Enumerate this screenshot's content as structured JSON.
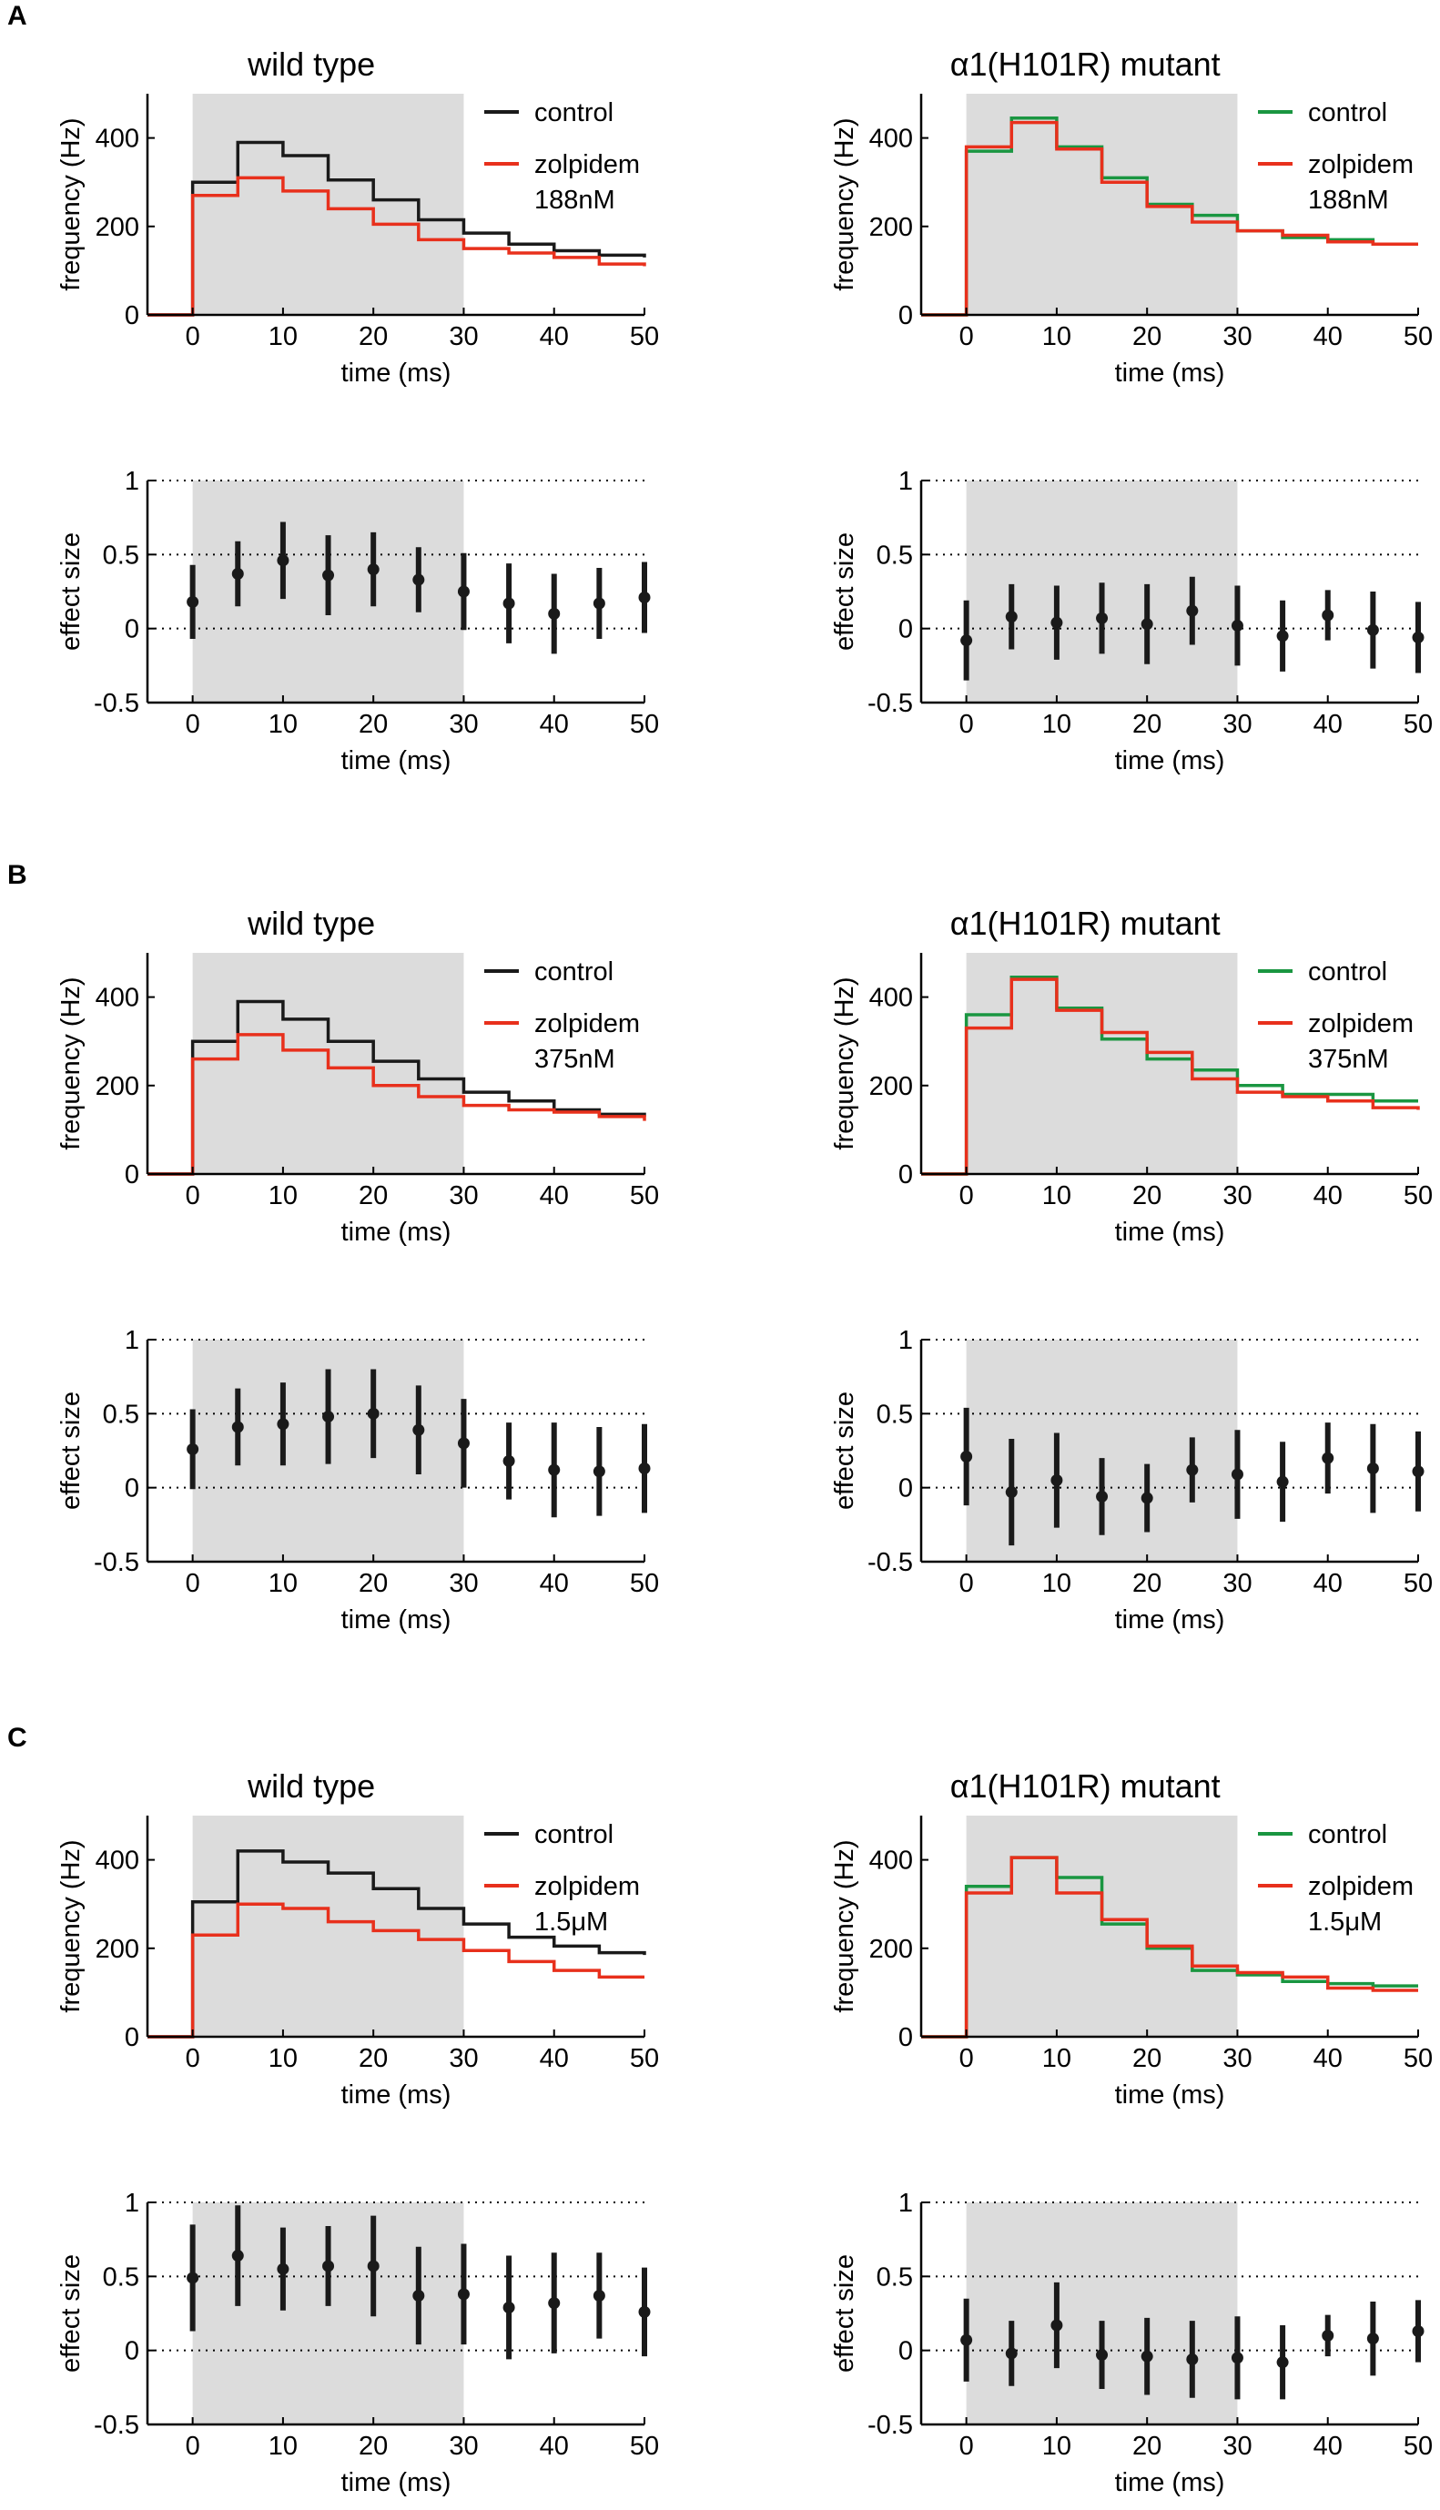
{
  "colors": {
    "control_wt": "#1a1a1a",
    "control_mut": "#1a9641",
    "zolpidem": "#e8301c",
    "shade": "#dcdcdc",
    "axis": "#000000"
  },
  "chart_data": [
    {
      "panel": "A",
      "type": "line",
      "title": "wild type",
      "xlabel": "time (ms)",
      "ylabel": "frequency (Hz)",
      "xlim": [
        -5,
        50
      ],
      "ylim": [
        0,
        500
      ],
      "xticks": [
        "0",
        "10",
        "20",
        "30",
        "40",
        "50"
      ],
      "yticks": [
        "0",
        "200",
        "400"
      ],
      "stimulus_window": [
        0,
        30
      ],
      "legend": {
        "items": [
          "control",
          "zolpidem"
        ],
        "dose": "188nM",
        "position": "top-right"
      },
      "series": [
        {
          "name": "control",
          "color": "control_wt",
          "x": [
            -5,
            0,
            5,
            10,
            15,
            20,
            25,
            30,
            35,
            40,
            45,
            50
          ],
          "values": [
            0,
            300,
            390,
            360,
            305,
            260,
            215,
            185,
            160,
            145,
            135,
            130
          ]
        },
        {
          "name": "zolpidem",
          "color": "zolpidem",
          "x": [
            -5,
            0,
            5,
            10,
            15,
            20,
            25,
            30,
            35,
            40,
            45,
            50
          ],
          "values": [
            0,
            270,
            310,
            280,
            240,
            205,
            170,
            150,
            140,
            130,
            115,
            110
          ]
        }
      ]
    },
    {
      "panel": "",
      "type": "errorbar",
      "title": "",
      "xlabel": "time (ms)",
      "ylabel": "effect size",
      "xlim": [
        -5,
        50
      ],
      "ylim": [
        -0.5,
        1
      ],
      "xticks": [
        "0",
        "10",
        "20",
        "30",
        "40",
        "50"
      ],
      "yticks": [
        "-0.5",
        "0",
        "0.5",
        "1"
      ],
      "stimulus_window": [
        0,
        30
      ],
      "gridlines": [
        0,
        0.5,
        1
      ],
      "x": [
        0,
        5,
        10,
        15,
        20,
        25,
        30,
        35,
        40,
        45,
        50
      ],
      "values": [
        0.18,
        0.37,
        0.46,
        0.36,
        0.4,
        0.33,
        0.25,
        0.17,
        0.1,
        0.17,
        0.21
      ],
      "err": [
        0.25,
        0.22,
        0.26,
        0.27,
        0.25,
        0.22,
        0.26,
        0.27,
        0.27,
        0.24,
        0.24
      ]
    },
    {
      "panel": "",
      "type": "line",
      "title": "α1(H101R) mutant",
      "xlabel": "time (ms)",
      "ylabel": "frequency (Hz)",
      "xlim": [
        -5,
        50
      ],
      "ylim": [
        0,
        500
      ],
      "xticks": [
        "0",
        "10",
        "20",
        "30",
        "40",
        "50"
      ],
      "yticks": [
        "0",
        "200",
        "400"
      ],
      "stimulus_window": [
        0,
        30
      ],
      "legend": {
        "items": [
          "control",
          "zolpidem"
        ],
        "dose": "188nM",
        "position": "top-right"
      },
      "series": [
        {
          "name": "control",
          "color": "control_mut",
          "x": [
            -5,
            0,
            5,
            10,
            15,
            20,
            25,
            30,
            35,
            40,
            45,
            50
          ],
          "values": [
            0,
            370,
            445,
            380,
            310,
            250,
            225,
            190,
            175,
            170,
            160,
            160
          ]
        },
        {
          "name": "zolpidem",
          "color": "zolpidem",
          "x": [
            -5,
            0,
            5,
            10,
            15,
            20,
            25,
            30,
            35,
            40,
            45,
            50
          ],
          "values": [
            0,
            380,
            435,
            375,
            300,
            245,
            210,
            190,
            180,
            165,
            160,
            160
          ]
        }
      ]
    },
    {
      "panel": "",
      "type": "errorbar",
      "title": "",
      "xlabel": "time (ms)",
      "ylabel": "effect size",
      "xlim": [
        -5,
        50
      ],
      "ylim": [
        -0.5,
        1
      ],
      "xticks": [
        "0",
        "10",
        "20",
        "30",
        "40",
        "50"
      ],
      "yticks": [
        "-0.5",
        "0",
        "0.5",
        "1"
      ],
      "stimulus_window": [
        0,
        30
      ],
      "gridlines": [
        0,
        0.5,
        1
      ],
      "x": [
        0,
        5,
        10,
        15,
        20,
        25,
        30,
        35,
        40,
        45,
        50
      ],
      "values": [
        -0.08,
        0.08,
        0.04,
        0.07,
        0.03,
        0.12,
        0.02,
        -0.05,
        0.09,
        -0.01,
        -0.06
      ],
      "err": [
        0.27,
        0.22,
        0.25,
        0.24,
        0.27,
        0.23,
        0.27,
        0.24,
        0.17,
        0.26,
        0.24
      ]
    },
    {
      "panel": "B",
      "type": "line",
      "title": "wild type",
      "xlabel": "time (ms)",
      "ylabel": "frequency (Hz)",
      "xlim": [
        -5,
        50
      ],
      "ylim": [
        0,
        500
      ],
      "xticks": [
        "0",
        "10",
        "20",
        "30",
        "40",
        "50"
      ],
      "yticks": [
        "0",
        "200",
        "400"
      ],
      "stimulus_window": [
        0,
        30
      ],
      "legend": {
        "items": [
          "control",
          "zolpidem"
        ],
        "dose": "375nM",
        "position": "top-right"
      },
      "series": [
        {
          "name": "control",
          "color": "control_wt",
          "x": [
            -5,
            0,
            5,
            10,
            15,
            20,
            25,
            30,
            35,
            40,
            45,
            50
          ],
          "values": [
            0,
            300,
            390,
            350,
            300,
            255,
            215,
            185,
            165,
            145,
            135,
            130
          ]
        },
        {
          "name": "zolpidem",
          "color": "zolpidem",
          "x": [
            -5,
            0,
            5,
            10,
            15,
            20,
            25,
            30,
            35,
            40,
            45,
            50
          ],
          "values": [
            0,
            260,
            315,
            280,
            240,
            200,
            175,
            155,
            145,
            140,
            130,
            120
          ]
        }
      ]
    },
    {
      "panel": "",
      "type": "errorbar",
      "title": "",
      "xlabel": "time (ms)",
      "ylabel": "effect size",
      "xlim": [
        -5,
        50
      ],
      "ylim": [
        -0.5,
        1
      ],
      "xticks": [
        "0",
        "10",
        "20",
        "30",
        "40",
        "50"
      ],
      "yticks": [
        "-0.5",
        "0",
        "0.5",
        "1"
      ],
      "stimulus_window": [
        0,
        30
      ],
      "gridlines": [
        0,
        0.5,
        1
      ],
      "x": [
        0,
        5,
        10,
        15,
        20,
        25,
        30,
        35,
        40,
        45,
        50
      ],
      "values": [
        0.26,
        0.41,
        0.43,
        0.48,
        0.5,
        0.39,
        0.3,
        0.18,
        0.12,
        0.11,
        0.13
      ],
      "err": [
        0.27,
        0.26,
        0.28,
        0.32,
        0.3,
        0.3,
        0.3,
        0.26,
        0.32,
        0.3,
        0.3
      ]
    },
    {
      "panel": "",
      "type": "line",
      "title": "α1(H101R) mutant",
      "xlabel": "time (ms)",
      "ylabel": "frequency (Hz)",
      "xlim": [
        -5,
        50
      ],
      "ylim": [
        0,
        500
      ],
      "xticks": [
        "0",
        "10",
        "20",
        "30",
        "40",
        "50"
      ],
      "yticks": [
        "0",
        "200",
        "400"
      ],
      "stimulus_window": [
        0,
        30
      ],
      "legend": {
        "items": [
          "control",
          "zolpidem"
        ],
        "dose": "375nM",
        "position": "top-right"
      },
      "series": [
        {
          "name": "control",
          "color": "control_mut",
          "x": [
            -5,
            0,
            5,
            10,
            15,
            20,
            25,
            30,
            35,
            40,
            45,
            50
          ],
          "values": [
            0,
            360,
            445,
            375,
            305,
            260,
            235,
            200,
            180,
            180,
            165,
            165
          ]
        },
        {
          "name": "zolpidem",
          "color": "zolpidem",
          "x": [
            -5,
            0,
            5,
            10,
            15,
            20,
            25,
            30,
            35,
            40,
            45,
            50
          ],
          "values": [
            0,
            330,
            440,
            370,
            320,
            275,
            215,
            185,
            175,
            165,
            150,
            145
          ]
        }
      ]
    },
    {
      "panel": "",
      "type": "errorbar",
      "title": "",
      "xlabel": "time (ms)",
      "ylabel": "effect size",
      "xlim": [
        -5,
        50
      ],
      "ylim": [
        -0.5,
        1
      ],
      "xticks": [
        "0",
        "10",
        "20",
        "30",
        "40",
        "50"
      ],
      "yticks": [
        "-0.5",
        "0",
        "0.5",
        "1"
      ],
      "stimulus_window": [
        0,
        30
      ],
      "gridlines": [
        0,
        0.5,
        1
      ],
      "x": [
        0,
        5,
        10,
        15,
        20,
        25,
        30,
        35,
        40,
        45,
        50
      ],
      "values": [
        0.21,
        -0.03,
        0.05,
        -0.06,
        -0.07,
        0.12,
        0.09,
        0.04,
        0.2,
        0.13,
        0.11
      ],
      "err": [
        0.33,
        0.36,
        0.32,
        0.26,
        0.23,
        0.22,
        0.3,
        0.27,
        0.24,
        0.3,
        0.27
      ]
    },
    {
      "panel": "C",
      "type": "line",
      "title": "wild type",
      "xlabel": "time (ms)",
      "ylabel": "frequency (Hz)",
      "xlim": [
        -5,
        50
      ],
      "ylim": [
        0,
        500
      ],
      "xticks": [
        "0",
        "10",
        "20",
        "30",
        "40",
        "50"
      ],
      "yticks": [
        "0",
        "200",
        "400"
      ],
      "stimulus_window": [
        0,
        30
      ],
      "legend": {
        "items": [
          "control",
          "zolpidem"
        ],
        "dose": "1.5μM",
        "position": "top-right"
      },
      "series": [
        {
          "name": "control",
          "color": "control_wt",
          "x": [
            -5,
            0,
            5,
            10,
            15,
            20,
            25,
            30,
            35,
            40,
            45,
            50
          ],
          "values": [
            0,
            305,
            420,
            395,
            370,
            335,
            290,
            255,
            225,
            205,
            190,
            185
          ]
        },
        {
          "name": "zolpidem",
          "color": "zolpidem",
          "x": [
            -5,
            0,
            5,
            10,
            15,
            20,
            25,
            30,
            35,
            40,
            45,
            50
          ],
          "values": [
            0,
            230,
            300,
            290,
            260,
            240,
            220,
            195,
            170,
            150,
            135,
            135
          ]
        }
      ]
    },
    {
      "panel": "",
      "type": "errorbar",
      "title": "",
      "xlabel": "time (ms)",
      "ylabel": "effect size",
      "xlim": [
        -5,
        50
      ],
      "ylim": [
        -0.5,
        1
      ],
      "xticks": [
        "0",
        "10",
        "20",
        "30",
        "40",
        "50"
      ],
      "yticks": [
        "-0.5",
        "0",
        "0.5",
        "1"
      ],
      "stimulus_window": [
        0,
        30
      ],
      "gridlines": [
        0,
        0.5,
        1
      ],
      "x": [
        0,
        5,
        10,
        15,
        20,
        25,
        30,
        35,
        40,
        45,
        50
      ],
      "values": [
        0.49,
        0.64,
        0.55,
        0.57,
        0.57,
        0.37,
        0.38,
        0.29,
        0.32,
        0.37,
        0.26
      ],
      "err": [
        0.36,
        0.34,
        0.28,
        0.27,
        0.34,
        0.33,
        0.34,
        0.35,
        0.34,
        0.29,
        0.3
      ]
    },
    {
      "panel": "",
      "type": "line",
      "title": "α1(H101R) mutant",
      "xlabel": "time (ms)",
      "ylabel": "frequency (Hz)",
      "xlim": [
        -5,
        50
      ],
      "ylim": [
        0,
        500
      ],
      "xticks": [
        "0",
        "10",
        "20",
        "30",
        "40",
        "50"
      ],
      "yticks": [
        "0",
        "200",
        "400"
      ],
      "stimulus_window": [
        0,
        30
      ],
      "legend": {
        "items": [
          "control",
          "zolpidem"
        ],
        "dose": "1.5μM",
        "position": "top-right"
      },
      "series": [
        {
          "name": "control",
          "color": "control_mut",
          "x": [
            -5,
            0,
            5,
            10,
            15,
            20,
            25,
            30,
            35,
            40,
            45,
            50
          ],
          "values": [
            0,
            340,
            405,
            360,
            255,
            200,
            150,
            140,
            125,
            120,
            115,
            115
          ]
        },
        {
          "name": "zolpidem",
          "color": "zolpidem",
          "x": [
            -5,
            0,
            5,
            10,
            15,
            20,
            25,
            30,
            35,
            40,
            45,
            50
          ],
          "values": [
            0,
            325,
            405,
            325,
            265,
            205,
            160,
            145,
            135,
            110,
            105,
            105
          ]
        }
      ]
    },
    {
      "panel": "",
      "type": "errorbar",
      "title": "",
      "xlabel": "time (ms)",
      "ylabel": "effect size",
      "xlim": [
        -5,
        50
      ],
      "ylim": [
        -0.5,
        1
      ],
      "xticks": [
        "0",
        "10",
        "20",
        "30",
        "40",
        "50"
      ],
      "yticks": [
        "-0.5",
        "0",
        "0.5",
        "1"
      ],
      "stimulus_window": [
        0,
        30
      ],
      "gridlines": [
        0,
        0.5,
        1
      ],
      "x": [
        0,
        5,
        10,
        15,
        20,
        25,
        30,
        35,
        40,
        45,
        50
      ],
      "values": [
        0.07,
        -0.02,
        0.17,
        -0.03,
        -0.04,
        -0.06,
        -0.05,
        -0.08,
        0.1,
        0.08,
        0.13
      ],
      "err": [
        0.28,
        0.22,
        0.29,
        0.23,
        0.26,
        0.26,
        0.28,
        0.25,
        0.14,
        0.25,
        0.21
      ]
    }
  ]
}
